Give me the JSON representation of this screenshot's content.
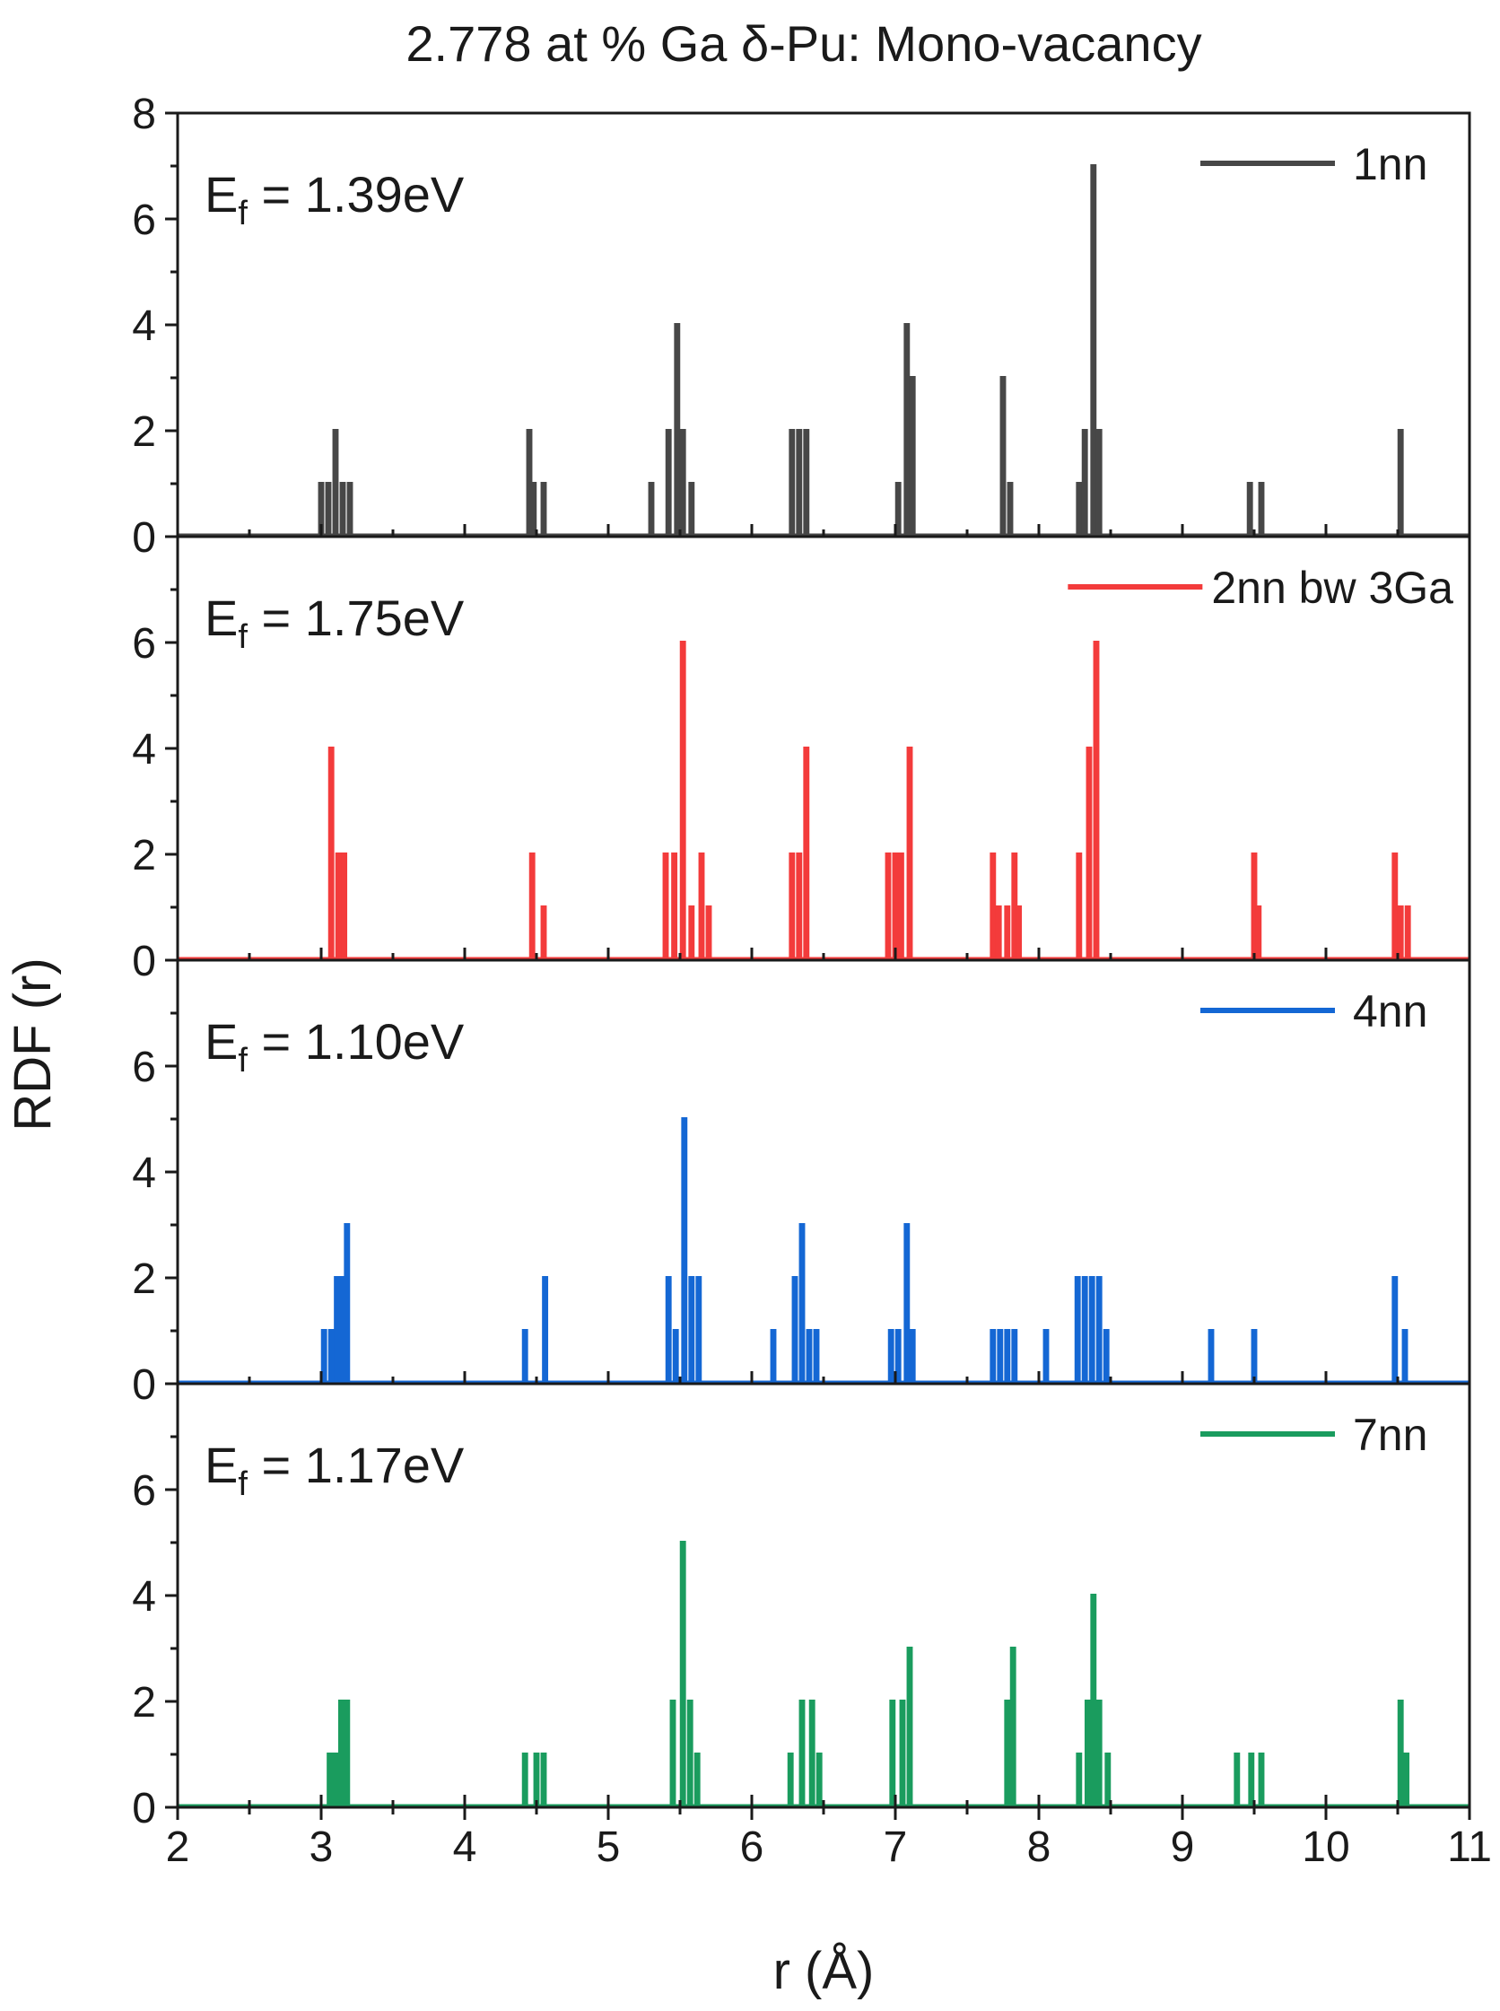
{
  "chart_data": {
    "type": "line",
    "title": "2.778 at % Ga δ-Pu: Mono-vacancy",
    "xlabel": "r (Å)",
    "ylabel": "RDF (r)",
    "xlim": [
      2,
      11
    ],
    "xticks": [
      "2",
      "3",
      "4",
      "5",
      "6",
      "7",
      "8",
      "9",
      "10",
      "11"
    ],
    "panels": [
      {
        "name": "1nn",
        "legend": "1nn",
        "color": "#474747",
        "annotation": {
          "base": "E",
          "sub": "f",
          "rest": " = 1.39eV"
        },
        "ylim": [
          0,
          8
        ],
        "yticks": [
          "0",
          "2",
          "4",
          "6",
          "8"
        ],
        "peaks": [
          [
            3.0,
            1
          ],
          [
            3.05,
            1
          ],
          [
            3.1,
            2
          ],
          [
            3.15,
            1
          ],
          [
            3.2,
            1
          ],
          [
            4.45,
            2
          ],
          [
            4.48,
            1
          ],
          [
            4.55,
            1
          ],
          [
            5.3,
            1
          ],
          [
            5.42,
            2
          ],
          [
            5.48,
            4
          ],
          [
            5.52,
            2
          ],
          [
            5.58,
            1
          ],
          [
            6.28,
            2
          ],
          [
            6.33,
            2
          ],
          [
            6.38,
            2
          ],
          [
            7.02,
            1
          ],
          [
            7.08,
            4
          ],
          [
            7.12,
            3
          ],
          [
            7.75,
            3
          ],
          [
            7.8,
            1
          ],
          [
            8.28,
            1
          ],
          [
            8.32,
            2
          ],
          [
            8.38,
            7
          ],
          [
            8.42,
            2
          ],
          [
            9.47,
            1
          ],
          [
            9.55,
            1
          ],
          [
            10.52,
            2
          ]
        ]
      },
      {
        "name": "2nn-bw-3ga",
        "legend": "2nn bw 3Ga",
        "color": "#f33b3b",
        "annotation": {
          "base": "E",
          "sub": "f",
          "rest": " = 1.75eV"
        },
        "ylim": [
          0,
          8
        ],
        "yticks": [
          "0",
          "2",
          "4",
          "6"
        ],
        "peaks": [
          [
            3.07,
            4
          ],
          [
            3.12,
            2
          ],
          [
            3.16,
            2
          ],
          [
            4.47,
            2
          ],
          [
            4.55,
            1
          ],
          [
            5.4,
            2
          ],
          [
            5.46,
            2
          ],
          [
            5.52,
            6
          ],
          [
            5.58,
            1
          ],
          [
            5.65,
            2
          ],
          [
            5.7,
            1
          ],
          [
            6.28,
            2
          ],
          [
            6.33,
            2
          ],
          [
            6.38,
            4
          ],
          [
            6.95,
            2
          ],
          [
            7.0,
            2
          ],
          [
            7.04,
            2
          ],
          [
            7.1,
            4
          ],
          [
            7.68,
            2
          ],
          [
            7.72,
            1
          ],
          [
            7.78,
            1
          ],
          [
            7.83,
            2
          ],
          [
            7.86,
            1
          ],
          [
            8.28,
            2
          ],
          [
            8.35,
            4
          ],
          [
            8.4,
            6
          ],
          [
            9.5,
            2
          ],
          [
            9.53,
            1
          ],
          [
            10.48,
            2
          ],
          [
            10.52,
            1
          ],
          [
            10.57,
            1
          ]
        ]
      },
      {
        "name": "4nn",
        "legend": "4nn",
        "color": "#1467d4",
        "annotation": {
          "base": "E",
          "sub": "f",
          "rest": " = 1.10eV"
        },
        "ylim": [
          0,
          8
        ],
        "yticks": [
          "0",
          "2",
          "4",
          "6"
        ],
        "peaks": [
          [
            3.02,
            1
          ],
          [
            3.07,
            1
          ],
          [
            3.11,
            2
          ],
          [
            3.15,
            2
          ],
          [
            3.18,
            3
          ],
          [
            4.42,
            1
          ],
          [
            4.56,
            2
          ],
          [
            5.42,
            2
          ],
          [
            5.47,
            1
          ],
          [
            5.53,
            5
          ],
          [
            5.58,
            2
          ],
          [
            5.63,
            2
          ],
          [
            6.15,
            1
          ],
          [
            6.3,
            2
          ],
          [
            6.35,
            3
          ],
          [
            6.4,
            1
          ],
          [
            6.45,
            1
          ],
          [
            6.97,
            1
          ],
          [
            7.02,
            1
          ],
          [
            7.08,
            3
          ],
          [
            7.12,
            1
          ],
          [
            7.68,
            1
          ],
          [
            7.73,
            1
          ],
          [
            7.78,
            1
          ],
          [
            7.83,
            1
          ],
          [
            8.05,
            1
          ],
          [
            8.27,
            2
          ],
          [
            8.32,
            2
          ],
          [
            8.37,
            2
          ],
          [
            8.42,
            2
          ],
          [
            8.47,
            1
          ],
          [
            9.2,
            1
          ],
          [
            9.5,
            1
          ],
          [
            10.48,
            2
          ],
          [
            10.55,
            1
          ]
        ]
      },
      {
        "name": "7nn",
        "legend": "7nn",
        "color": "#1a9c5e",
        "annotation": {
          "base": "E",
          "sub": "f",
          "rest": " = 1.17eV"
        },
        "ylim": [
          0,
          8
        ],
        "yticks": [
          "0",
          "2",
          "4",
          "6"
        ],
        "peaks": [
          [
            3.06,
            1
          ],
          [
            3.1,
            1
          ],
          [
            3.14,
            2
          ],
          [
            3.18,
            2
          ],
          [
            4.42,
            1
          ],
          [
            4.5,
            1
          ],
          [
            4.55,
            1
          ],
          [
            5.45,
            2
          ],
          [
            5.52,
            5
          ],
          [
            5.57,
            2
          ],
          [
            5.62,
            1
          ],
          [
            6.27,
            1
          ],
          [
            6.35,
            2
          ],
          [
            6.42,
            2
          ],
          [
            6.47,
            1
          ],
          [
            6.98,
            2
          ],
          [
            7.05,
            2
          ],
          [
            7.1,
            3
          ],
          [
            7.78,
            2
          ],
          [
            7.82,
            3
          ],
          [
            8.28,
            1
          ],
          [
            8.34,
            2
          ],
          [
            8.38,
            4
          ],
          [
            8.42,
            2
          ],
          [
            8.48,
            1
          ],
          [
            9.38,
            1
          ],
          [
            9.48,
            1
          ],
          [
            9.55,
            1
          ],
          [
            10.52,
            2
          ],
          [
            10.56,
            1
          ]
        ]
      }
    ]
  }
}
